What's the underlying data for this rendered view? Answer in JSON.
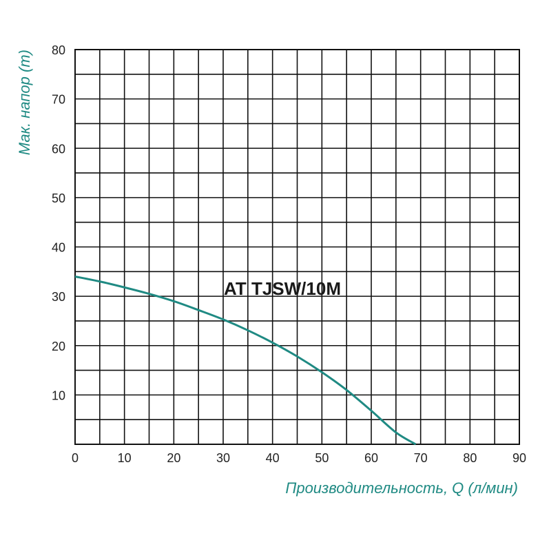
{
  "chart_data": {
    "type": "line",
    "xlabel": "Производительность, Q (л/мин)",
    "ylabel": "Мак. напор (m)",
    "xlim": [
      0,
      90
    ],
    "ylim": [
      0,
      80
    ],
    "x_ticks": [
      "0",
      "10",
      "20",
      "30",
      "40",
      "50",
      "60",
      "70",
      "80",
      "90"
    ],
    "y_ticks": [
      "10",
      "20",
      "30",
      "40",
      "50",
      "60",
      "70",
      "80"
    ],
    "grid": true,
    "minor_grid_step": 5,
    "series": [
      {
        "name": "AT TJSW/10M",
        "x": [
          0,
          5,
          10,
          15,
          20,
          25,
          30,
          35,
          40,
          45,
          50,
          55,
          60,
          65,
          69
        ],
        "y": [
          34,
          33,
          31.8,
          30.5,
          29,
          27.2,
          25.3,
          23.1,
          20.6,
          17.8,
          14.6,
          11,
          6.8,
          2.4,
          0
        ]
      }
    ],
    "colors": {
      "curve": "#1f8a83",
      "axis_title": "#1f8a83",
      "grid": "#111111"
    }
  }
}
